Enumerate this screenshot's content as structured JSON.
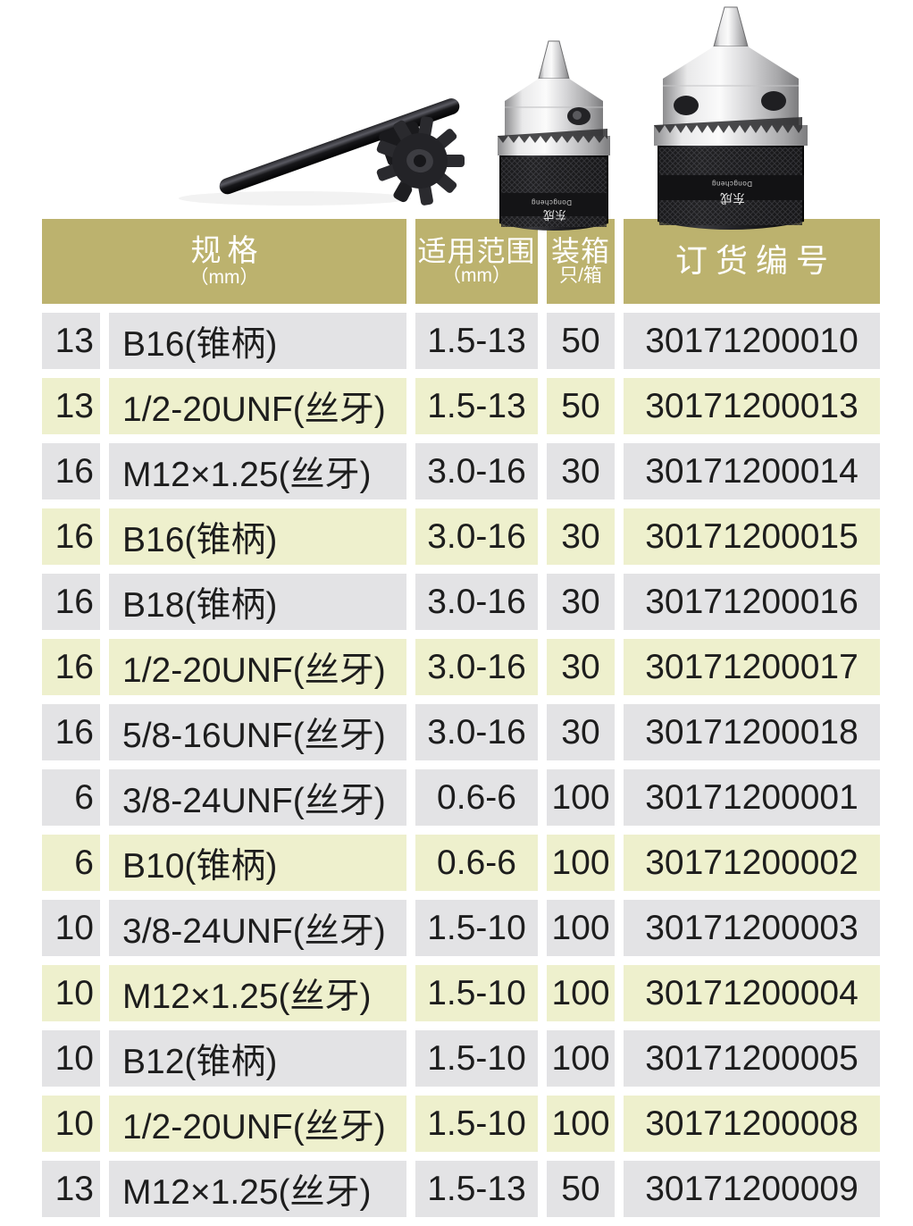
{
  "products_image": {
    "brand": "Dongcheng",
    "brand_cn": "东成",
    "items": [
      "chuck-key",
      "drill-chuck-medium",
      "drill-chuck-large"
    ]
  },
  "table": {
    "colors": {
      "header_bg": "#bcb26e",
      "header_text": "#ffffff",
      "row_gray": "#e3e3e5",
      "row_yellow": "#eef0cd",
      "cell_text": "#1d1d1d"
    },
    "header": {
      "spec_main": "规格",
      "spec_sub": "（mm）",
      "range_main": "适用范围",
      "range_sub": "（mm）",
      "packing_main": "装箱",
      "packing_sub": "只/箱",
      "order_main": "订货编号"
    },
    "rows": [
      {
        "size": "13",
        "spec": "B16(锥柄)",
        "range": "1.5-13",
        "qty": "50",
        "order_no": "30171200010",
        "tint": "gray"
      },
      {
        "size": "13",
        "spec": "1/2-20UNF(丝牙)",
        "range": "1.5-13",
        "qty": "50",
        "order_no": "30171200013",
        "tint": "yellow"
      },
      {
        "size": "16",
        "spec": "M12×1.25(丝牙)",
        "range": "3.0-16",
        "qty": "30",
        "order_no": "30171200014",
        "tint": "gray"
      },
      {
        "size": "16",
        "spec": "B16(锥柄)",
        "range": "3.0-16",
        "qty": "30",
        "order_no": "30171200015",
        "tint": "yellow"
      },
      {
        "size": "16",
        "spec": "B18(锥柄)",
        "range": "3.0-16",
        "qty": "30",
        "order_no": "30171200016",
        "tint": "gray"
      },
      {
        "size": "16",
        "spec": "1/2-20UNF(丝牙)",
        "range": "3.0-16",
        "qty": "30",
        "order_no": "30171200017",
        "tint": "yellow"
      },
      {
        "size": "16",
        "spec": "5/8-16UNF(丝牙)",
        "range": "3.0-16",
        "qty": "30",
        "order_no": "30171200018",
        "tint": "gray"
      },
      {
        "size": "6",
        "spec": "3/8-24UNF(丝牙)",
        "range": "0.6-6",
        "qty": "100",
        "order_no": "30171200001",
        "tint": "gray"
      },
      {
        "size": "6",
        "spec": "B10(锥柄)",
        "range": "0.6-6",
        "qty": "100",
        "order_no": "30171200002",
        "tint": "yellow"
      },
      {
        "size": "10",
        "spec": "3/8-24UNF(丝牙)",
        "range": "1.5-10",
        "qty": "100",
        "order_no": "30171200003",
        "tint": "gray"
      },
      {
        "size": "10",
        "spec": "M12×1.25(丝牙)",
        "range": "1.5-10",
        "qty": "100",
        "order_no": "30171200004",
        "tint": "yellow"
      },
      {
        "size": "10",
        "spec": "B12(锥柄)",
        "range": "1.5-10",
        "qty": "100",
        "order_no": "30171200005",
        "tint": "gray"
      },
      {
        "size": "10",
        "spec": "1/2-20UNF(丝牙)",
        "range": "1.5-10",
        "qty": "100",
        "order_no": "30171200008",
        "tint": "yellow"
      },
      {
        "size": "13",
        "spec": "M12×1.25(丝牙)",
        "range": "1.5-13",
        "qty": "50",
        "order_no": "30171200009",
        "tint": "gray"
      }
    ]
  }
}
